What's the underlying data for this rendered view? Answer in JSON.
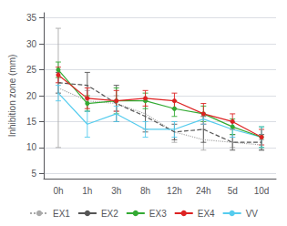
{
  "chart_data": {
    "type": "line",
    "ylabel": "Inhibition zone (mm)",
    "categories": [
      "0h",
      "1h",
      "3h",
      "8h",
      "12h",
      "24h",
      "5d",
      "10d"
    ],
    "series": [
      {
        "name": "EX1",
        "color": "#aaaaaa",
        "line_style": "dotted",
        "marker": "none",
        "values": [
          21.5,
          19.0,
          18.5,
          16.5,
          13.0,
          11.5,
          11.0,
          10.5
        ],
        "yerr": [
          11.5,
          2.0,
          1.5,
          3.0,
          2.0,
          2.0,
          1.0,
          1.0
        ]
      },
      {
        "name": "EX2",
        "color": "#555555",
        "line_style": "dashed",
        "marker": "none",
        "values": [
          22.5,
          22.0,
          18.5,
          16.0,
          13.0,
          13.5,
          11.0,
          11.0
        ],
        "yerr": [
          2.0,
          2.5,
          3.5,
          3.0,
          1.5,
          2.5,
          1.5,
          1.5
        ]
      },
      {
        "name": "EX3",
        "color": "#33aa33",
        "line_style": "solid",
        "marker": "circle",
        "values": [
          25.0,
          18.5,
          19.0,
          19.0,
          17.5,
          16.5,
          14.0,
          12.0
        ],
        "yerr": [
          1.5,
          1.5,
          2.5,
          1.5,
          1.5,
          1.5,
          1.5,
          2.0
        ]
      },
      {
        "name": "EX4",
        "color": "#dd2222",
        "line_style": "solid",
        "marker": "circle",
        "values": [
          24.0,
          19.5,
          19.0,
          19.5,
          19.0,
          16.5,
          15.0,
          12.0
        ],
        "yerr": [
          1.5,
          2.0,
          2.0,
          1.5,
          1.5,
          2.0,
          1.5,
          1.5
        ]
      },
      {
        "name": "VV",
        "color": "#55ccee",
        "line_style": "solid",
        "marker": "none",
        "values": [
          20.5,
          14.5,
          16.5,
          13.5,
          13.5,
          15.5,
          13.5,
          12.0
        ],
        "yerr": [
          1.5,
          2.5,
          1.5,
          1.5,
          1.5,
          1.0,
          1.5,
          2.0
        ]
      }
    ],
    "ylim": [
      4,
      36
    ],
    "yticks": [
      5,
      10,
      15,
      20,
      25,
      30,
      35
    ],
    "grid": true,
    "legend": "bottom"
  }
}
